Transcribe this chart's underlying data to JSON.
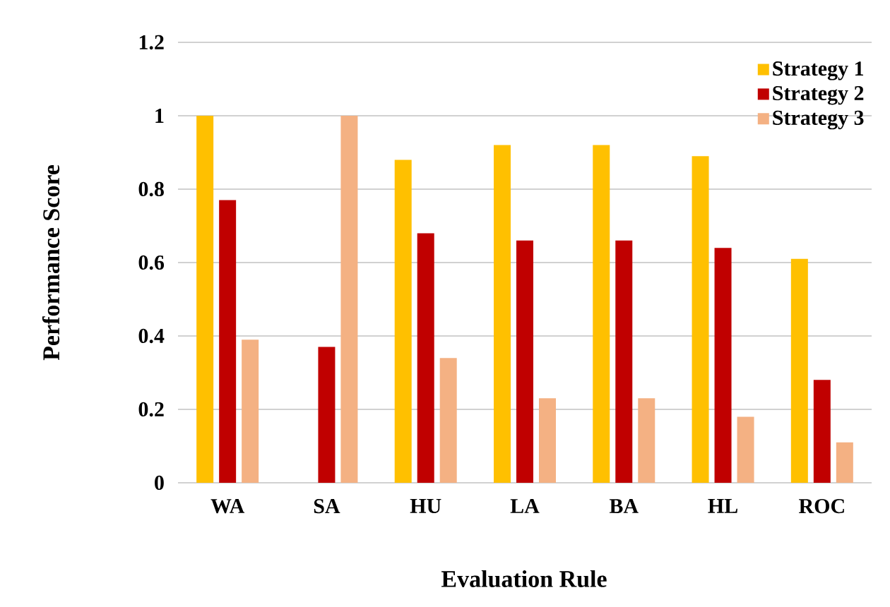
{
  "chart_data": {
    "type": "bar",
    "xlabel": "Evaluation Rule",
    "ylabel": "Performance Score",
    "categories": [
      "WA",
      "SA",
      "HU",
      "LA",
      "BA",
      "HL",
      "ROC"
    ],
    "series": [
      {
        "name": "Strategy 1",
        "color": "#ffc000",
        "values": [
          1,
          0,
          0.88,
          0.92,
          0.92,
          0.89,
          0.61
        ]
      },
      {
        "name": "Strategy 2",
        "color": "#c00000",
        "values": [
          0.77,
          0.37,
          0.68,
          0.66,
          0.66,
          0.64,
          0.28
        ]
      },
      {
        "name": "Strategy 3",
        "color": "#f4b183",
        "values": [
          0.39,
          1,
          0.34,
          0.23,
          0.23,
          0.18,
          0.11
        ]
      }
    ],
    "ylim": [
      0,
      1.2
    ],
    "yticks": [
      0,
      0.2,
      0.4,
      0.6,
      0.8,
      1,
      1.2
    ],
    "grid": "y",
    "legend": "top right"
  }
}
